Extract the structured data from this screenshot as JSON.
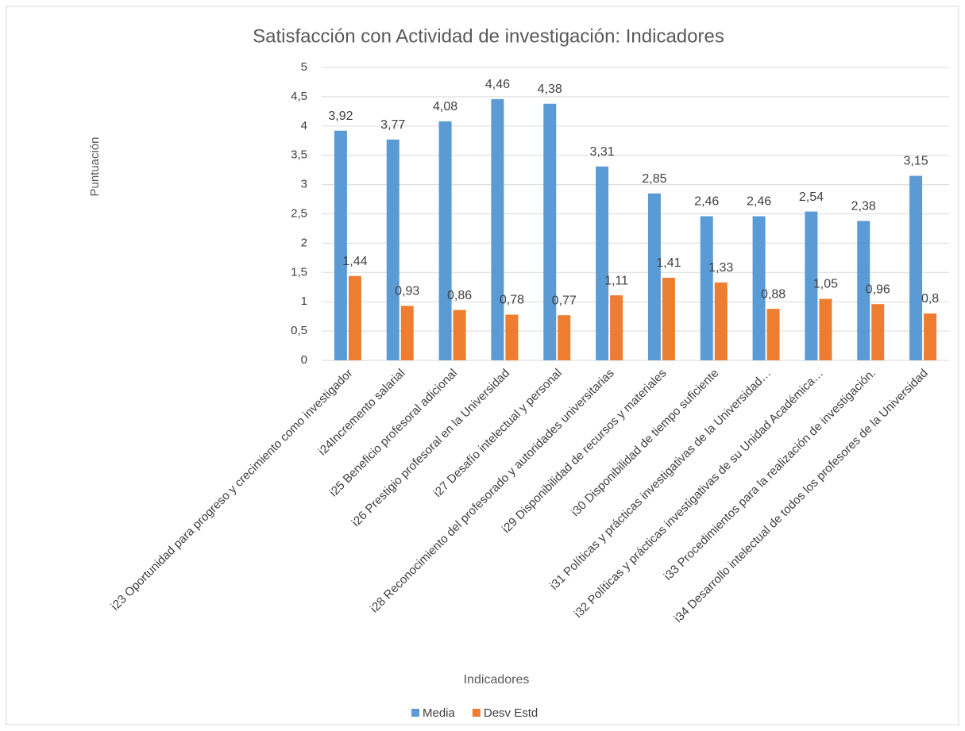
{
  "chart_data": {
    "type": "bar",
    "title": "Satisfacción con Actividad de investigación: Indicadores",
    "y_label": "Puntuación",
    "x_label": "Indicadores",
    "categories": [
      "i23 Oportunidad para progreso  y crecimiento como investigador",
      "i24Incremento salarial",
      "i25 Beneficio profesoral adicional",
      "i26 Prestigio profesoral en la Universidad",
      "i27 Desafío intelectual y personal",
      "i28 Reconocimiento del profesorado y autoridades universitarias",
      "i29 Disponibilidad de recursos y materiales",
      "i30 Disponibilidad de tiempo suficiente",
      "i31 Políticas y prácticas investigativas de la Universidad…",
      "i32 Políticas y prácticas investigativas de su Unidad Académica…",
      "i33 Procedimientos para la realización de investigación.",
      "i34 Desarrollo intelectual  de todos los profesores  de la Universidad"
    ],
    "series": [
      {
        "name": "Media",
        "color": "#5b9bd5",
        "values": [
          3.92,
          3.77,
          4.08,
          4.46,
          4.38,
          3.31,
          2.85,
          2.46,
          2.46,
          2.54,
          2.38,
          3.15
        ],
        "value_labels": [
          "3,92",
          "3,77",
          "4,08",
          "4,46",
          "4,38",
          "3,31",
          "2,85",
          "2,46",
          "2,46",
          "2,54",
          "2,38",
          "3,15"
        ]
      },
      {
        "name": "Desv Estd",
        "color": "#ed7d31",
        "values": [
          1.44,
          0.93,
          0.86,
          0.78,
          0.77,
          1.11,
          1.41,
          1.33,
          0.88,
          1.05,
          0.96,
          0.8
        ],
        "value_labels": [
          "1,44",
          "0,93",
          "0,86",
          "0,78",
          "0,77",
          "1,11",
          "1,41",
          "1,33",
          "0,88",
          "1,05",
          "0,96",
          "0,8"
        ]
      }
    ],
    "ylim": [
      0,
      5
    ],
    "yticks": [
      0,
      {
        "value": 0.5,
        "label": "0,5"
      },
      1,
      {
        "value": 1.5,
        "label": "1,5"
      },
      2,
      {
        "value": 2.5,
        "label": "2,5"
      },
      3,
      {
        "value": 3.5,
        "label": "3,5"
      },
      4,
      {
        "value": 4.5,
        "label": "4,5"
      },
      5
    ],
    "grid": true,
    "legend": "bottom"
  }
}
